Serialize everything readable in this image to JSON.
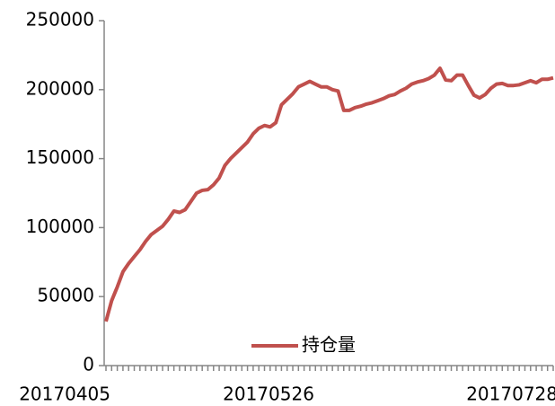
{
  "chart_data": {
    "type": "line",
    "categories": [
      "20170405",
      null,
      null,
      null,
      null,
      null,
      null,
      null,
      null,
      null,
      null,
      null,
      null,
      null,
      null,
      null,
      null,
      null,
      null,
      null,
      null,
      null,
      null,
      null,
      null,
      null,
      null,
      null,
      null,
      null,
      null,
      null,
      null,
      null,
      null,
      null,
      "20170526",
      null,
      null,
      null,
      null,
      null,
      null,
      null,
      null,
      null,
      null,
      null,
      null,
      null,
      null,
      null,
      null,
      null,
      null,
      null,
      null,
      null,
      null,
      null,
      null,
      null,
      null,
      null,
      null,
      null,
      null,
      null,
      null,
      null,
      null,
      null,
      null,
      null,
      null,
      null,
      null,
      null,
      null,
      "20170728"
    ],
    "series": [
      {
        "name": "持仓量",
        "color": "#c0504d",
        "values": [
          32000,
          47000,
          57000,
          68000,
          74000,
          79000,
          84000,
          90000,
          95000,
          98000,
          101000,
          106000,
          112000,
          111000,
          113000,
          119000,
          125000,
          127000,
          127500,
          131000,
          136000,
          145000,
          150000,
          154000,
          158000,
          162000,
          168000,
          172000,
          174000,
          173000,
          176000,
          189000,
          193000,
          197000,
          202000,
          204000,
          206000,
          204000,
          202000,
          202000,
          200000,
          199000,
          185000,
          185000,
          187000,
          188000,
          189500,
          190500,
          192000,
          193500,
          195500,
          196500,
          199000,
          201000,
          204000,
          205500,
          206500,
          208000,
          210500,
          215500,
          207000,
          206500,
          210500,
          210500,
          203000,
          196000,
          194000,
          196500,
          201000,
          204000,
          204500,
          203000,
          203000,
          203500,
          205000,
          206500,
          205000,
          207500,
          207500,
          208500
        ]
      }
    ],
    "ylim": [
      0,
      250000
    ],
    "yticks": [
      0,
      50000,
      100000,
      150000,
      200000,
      250000
    ],
    "legend": "bottom"
  }
}
